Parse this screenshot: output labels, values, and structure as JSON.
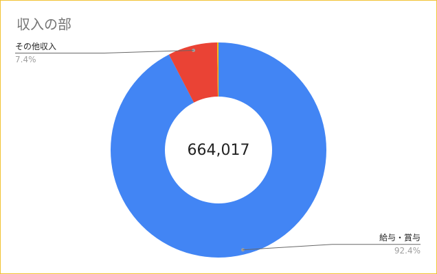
{
  "chart_data": {
    "type": "donut",
    "title": "収入の部",
    "center_label": "664,017",
    "categories": [
      "給与・賞与",
      "その他収入",
      null
    ],
    "values": [
      92.4,
      7.4,
      0.2
    ],
    "value_labels": [
      "92.4%",
      "7.4%",
      null
    ],
    "colors": [
      "#4285f4",
      "#ea4335",
      "#fbbc04"
    ]
  }
}
